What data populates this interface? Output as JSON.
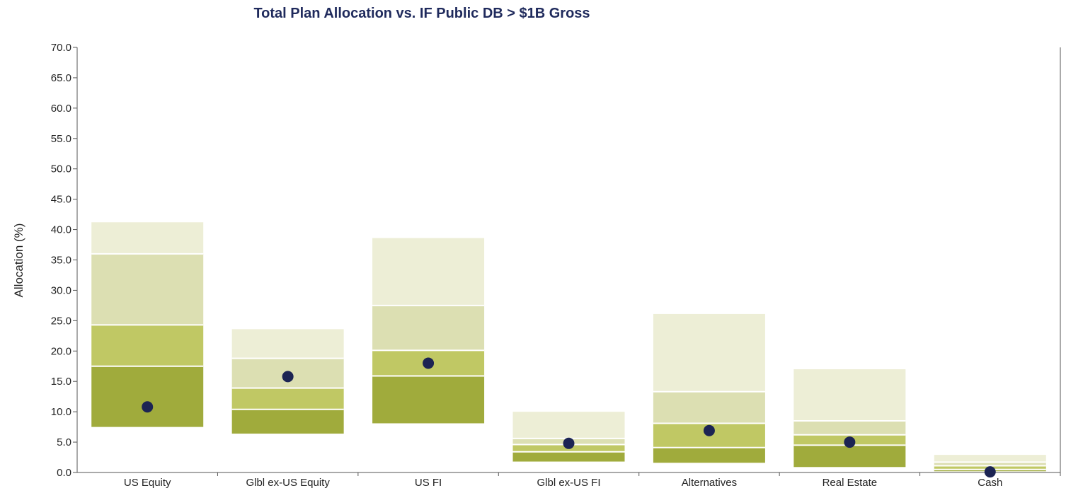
{
  "chart_data": {
    "type": "floating-bar",
    "title": "Total Plan Allocation vs. IF Public DB > $1B Gross",
    "ylabel": "Allocation (%)",
    "xlabel": "",
    "ylim": [
      0,
      70
    ],
    "yticks": [
      "0.0",
      "5.0",
      "10.0",
      "15.0",
      "20.0",
      "25.0",
      "30.0",
      "35.0",
      "40.0",
      "45.0",
      "50.0",
      "55.0",
      "60.0",
      "65.0",
      "70.0"
    ],
    "grid": false,
    "legend": "none",
    "colors": {
      "title": "#1f2a5c",
      "band_5_25": "#a0ab3c",
      "band_25_50": "#c0c864",
      "band_50_75": "#dcdfb2",
      "band_75_95": "#edeed6",
      "marker": "#1c2453",
      "axis": "#555555"
    },
    "categories": [
      "US Equity",
      "Glbl ex-US Equity",
      "US FI",
      "Glbl ex-US FI",
      "Alternatives",
      "Real Estate",
      "Cash"
    ],
    "percentiles": [
      {
        "p5": 7.5,
        "p25": 17.5,
        "median": 24.3,
        "p75": 36.0,
        "p95": 41.2,
        "plan": 10.8
      },
      {
        "p5": 6.4,
        "p25": 10.4,
        "median": 13.9,
        "p75": 18.8,
        "p95": 23.6,
        "plan": 15.8
      },
      {
        "p5": 8.1,
        "p25": 15.9,
        "median": 20.1,
        "p75": 27.5,
        "p95": 38.6,
        "plan": 18.0
      },
      {
        "p5": 1.8,
        "p25": 3.4,
        "median": 4.6,
        "p75": 5.6,
        "p95": 10.0,
        "plan": 4.8
      },
      {
        "p5": 1.6,
        "p25": 4.1,
        "median": 8.1,
        "p75": 13.3,
        "p95": 26.1,
        "plan": 6.9
      },
      {
        "p5": 0.9,
        "p25": 4.5,
        "median": 6.2,
        "p75": 8.5,
        "p95": 17.0,
        "plan": 5.0
      },
      {
        "p5": 0.2,
        "p25": 0.5,
        "median": 1.1,
        "p75": 1.7,
        "p95": 2.9,
        "plan": 0.1
      }
    ]
  }
}
